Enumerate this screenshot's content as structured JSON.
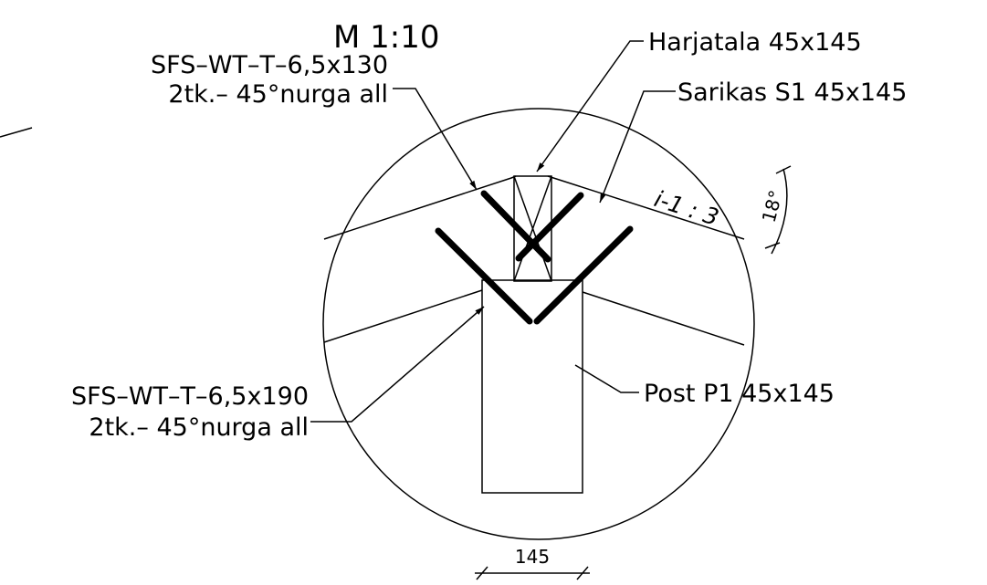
{
  "scale": "M 1:10",
  "labels": {
    "screw_upper": {
      "line1": "SFS–WT–T–6,5x130",
      "line2": "2tk.– 45°nurga all"
    },
    "ridge_beam": "Harjatala 45x145",
    "rafter": "Sarikas S1 45x145",
    "slope": "i-1 : 3",
    "angle": "18°",
    "screw_lower": {
      "line1": "SFS–WT–T–6,5x190",
      "line2": "2tk.– 45°nurga all"
    },
    "post": "Post P1 45x145",
    "dimension": "145"
  }
}
